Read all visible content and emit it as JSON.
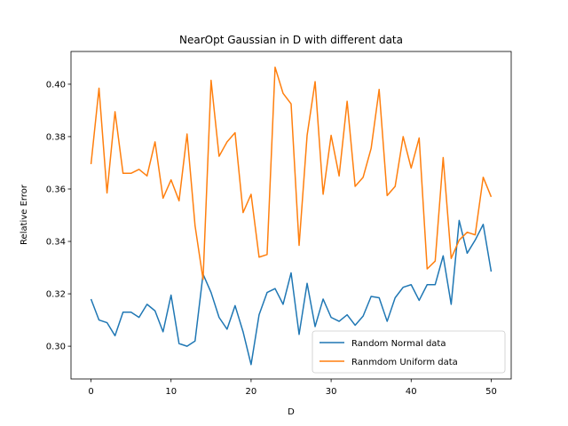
{
  "chart_data": {
    "type": "line",
    "title": "NearOpt Gaussian in D with different data",
    "xlabel": "D",
    "ylabel": "Relative Error",
    "xlim": [
      -2.5,
      52.5
    ],
    "ylim": [
      0.2875,
      0.4125
    ],
    "xticks": [
      0,
      10,
      20,
      30,
      40,
      50
    ],
    "yticks": [
      0.3,
      0.32,
      0.34,
      0.36,
      0.38,
      0.4
    ],
    "ytick_labels": [
      "0.30",
      "0.32",
      "0.34",
      "0.36",
      "0.38",
      "0.40"
    ],
    "grid": false,
    "legend_position": "lower-right",
    "x": [
      0,
      1,
      2,
      3,
      4,
      5,
      6,
      7,
      8,
      9,
      10,
      11,
      12,
      13,
      14,
      15,
      16,
      17,
      18,
      19,
      20,
      21,
      22,
      23,
      24,
      25,
      26,
      27,
      28,
      29,
      30,
      31,
      32,
      33,
      34,
      35,
      36,
      37,
      38,
      39,
      40,
      41,
      42,
      43,
      44,
      45,
      46,
      47,
      48,
      49,
      50
    ],
    "series": [
      {
        "name": "Random Normal data",
        "color": "#1f77b4",
        "values": [
          0.318,
          0.31,
          0.309,
          0.304,
          0.313,
          0.313,
          0.311,
          0.316,
          0.3135,
          0.3055,
          0.3195,
          0.301,
          0.3,
          0.302,
          0.3275,
          0.3205,
          0.311,
          0.3065,
          0.3155,
          0.3055,
          0.293,
          0.312,
          0.3205,
          0.322,
          0.316,
          0.328,
          0.3045,
          0.324,
          0.3075,
          0.318,
          0.311,
          0.3095,
          0.312,
          0.308,
          0.3115,
          0.319,
          0.3185,
          0.3095,
          0.3185,
          0.3225,
          0.3235,
          0.3175,
          0.3235,
          0.3235,
          0.3345,
          0.316,
          0.348,
          0.3355,
          0.3405,
          0.3465,
          0.3285
        ]
      },
      {
        "name": "Ranmdom Uniform data",
        "color": "#ff7f0e",
        "values": [
          0.3695,
          0.3985,
          0.3585,
          0.3895,
          0.366,
          0.366,
          0.3675,
          0.365,
          0.378,
          0.3565,
          0.3635,
          0.3555,
          0.381,
          0.346,
          0.3255,
          0.4015,
          0.3725,
          0.378,
          0.3815,
          0.351,
          0.358,
          0.334,
          0.335,
          0.4065,
          0.3965,
          0.3925,
          0.3385,
          0.3805,
          0.401,
          0.358,
          0.3805,
          0.365,
          0.3935,
          0.361,
          0.3645,
          0.3755,
          0.398,
          0.3575,
          0.361,
          0.38,
          0.368,
          0.3795,
          0.3295,
          0.3325,
          0.372,
          0.3335,
          0.3405,
          0.3435,
          0.3425,
          0.3645,
          0.357
        ]
      }
    ]
  }
}
